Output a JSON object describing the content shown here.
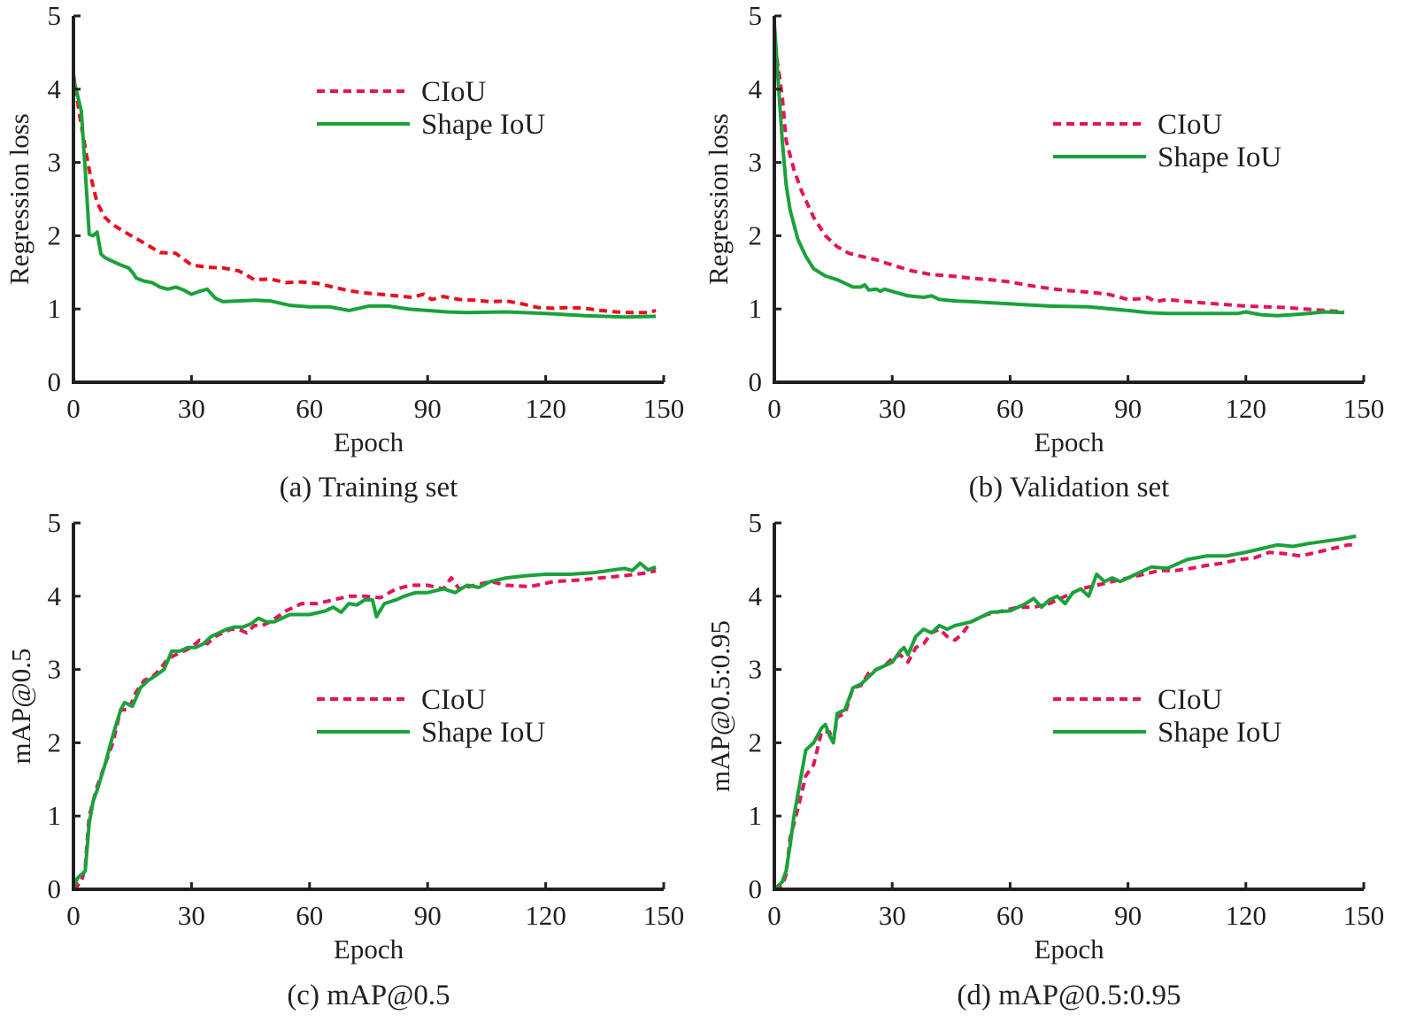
{
  "colors": {
    "ciou_loss": "#e8101e",
    "ciou": "#e4145a",
    "shape_iou": "#1aa23a",
    "axis": "#231f20"
  },
  "chart_data": [
    {
      "id": "a",
      "type": "line",
      "caption": "(a) Training set",
      "title": "",
      "xlabel": "Epoch",
      "ylabel": "Regression loss",
      "xlim": [
        0,
        150
      ],
      "ylim": [
        0,
        5
      ],
      "xticks": [
        0,
        30,
        60,
        90,
        120,
        150
      ],
      "yticks": [
        0,
        1,
        2,
        3,
        4,
        5
      ],
      "grid": false,
      "legend": {
        "position": "top-right",
        "entries": [
          "CIoU",
          "Shape IoU"
        ]
      },
      "series": [
        {
          "name": "CIoU",
          "style": "dashed",
          "color_key": "ciou_loss",
          "x": [
            0,
            2,
            4,
            6,
            8,
            10,
            14,
            18,
            22,
            26,
            30,
            34,
            38,
            42,
            46,
            50,
            54,
            58,
            62,
            66,
            70,
            74,
            78,
            82,
            86,
            89,
            91,
            94,
            98,
            102,
            106,
            110,
            114,
            118,
            122,
            126,
            130,
            134,
            138,
            142,
            146,
            148
          ],
          "y": [
            4.2,
            3.5,
            2.9,
            2.45,
            2.25,
            2.15,
            2.02,
            1.9,
            1.77,
            1.76,
            1.6,
            1.57,
            1.56,
            1.52,
            1.4,
            1.41,
            1.36,
            1.37,
            1.35,
            1.3,
            1.25,
            1.22,
            1.2,
            1.18,
            1.16,
            1.2,
            1.13,
            1.17,
            1.13,
            1.12,
            1.1,
            1.11,
            1.07,
            1.02,
            1.01,
            1.02,
            1.01,
            0.98,
            0.96,
            0.95,
            0.95,
            0.98
          ]
        },
        {
          "name": "Shape IoU",
          "style": "solid",
          "color_key": "shape_iou",
          "x": [
            0,
            2,
            3,
            4,
            5,
            6,
            7,
            8,
            10,
            12,
            14,
            15,
            16,
            18,
            20,
            22,
            24,
            26,
            28,
            30,
            32,
            34,
            36,
            38,
            42,
            46,
            50,
            55,
            60,
            65,
            70,
            75,
            80,
            85,
            90,
            95,
            100,
            110,
            120,
            130,
            140,
            148
          ],
          "y": [
            4.15,
            3.7,
            2.9,
            2.02,
            2.0,
            2.05,
            1.75,
            1.7,
            1.65,
            1.6,
            1.56,
            1.5,
            1.42,
            1.38,
            1.36,
            1.3,
            1.27,
            1.3,
            1.26,
            1.2,
            1.24,
            1.27,
            1.15,
            1.1,
            1.11,
            1.12,
            1.11,
            1.05,
            1.03,
            1.03,
            0.98,
            1.04,
            1.04,
            1.0,
            0.98,
            0.96,
            0.95,
            0.96,
            0.94,
            0.91,
            0.89,
            0.9
          ]
        }
      ]
    },
    {
      "id": "b",
      "type": "line",
      "caption": "(b) Validation set",
      "title": "",
      "xlabel": "Epoch",
      "ylabel": "Regression loss",
      "xlim": [
        0,
        150
      ],
      "ylim": [
        0,
        5
      ],
      "xticks": [
        0,
        30,
        60,
        90,
        120,
        150
      ],
      "yticks": [
        0,
        1,
        2,
        3,
        4,
        5
      ],
      "grid": false,
      "legend": {
        "position": "top-right",
        "entries": [
          "CIoU",
          "Shape IoU"
        ]
      },
      "series": [
        {
          "name": "CIoU",
          "style": "dashed",
          "color_key": "ciou",
          "x": [
            0,
            1,
            2,
            3,
            5,
            7,
            10,
            13,
            16,
            19,
            22,
            26,
            30,
            35,
            40,
            45,
            50,
            55,
            60,
            65,
            70,
            75,
            80,
            85,
            90,
            93,
            95,
            97,
            100,
            105,
            110,
            115,
            120,
            125,
            130,
            135,
            140,
            145
          ],
          "y": [
            4.6,
            4.3,
            3.9,
            3.3,
            2.9,
            2.6,
            2.25,
            2.0,
            1.85,
            1.76,
            1.72,
            1.67,
            1.6,
            1.52,
            1.47,
            1.45,
            1.42,
            1.4,
            1.37,
            1.32,
            1.28,
            1.25,
            1.23,
            1.2,
            1.13,
            1.14,
            1.16,
            1.1,
            1.13,
            1.1,
            1.08,
            1.06,
            1.04,
            1.03,
            1.02,
            1.0,
            0.98,
            0.96
          ]
        },
        {
          "name": "Shape IoU",
          "style": "solid",
          "color_key": "shape_iou",
          "x": [
            0,
            1,
            2,
            3,
            4,
            6,
            8,
            10,
            13,
            16,
            18,
            20,
            22,
            23,
            24,
            26,
            27,
            28,
            30,
            34,
            38,
            40,
            42,
            46,
            50,
            60,
            70,
            80,
            90,
            95,
            100,
            110,
            118,
            120,
            124,
            128,
            134,
            140,
            145
          ],
          "y": [
            4.9,
            4.1,
            3.3,
            2.7,
            2.35,
            1.95,
            1.72,
            1.55,
            1.45,
            1.4,
            1.35,
            1.3,
            1.3,
            1.33,
            1.26,
            1.27,
            1.24,
            1.27,
            1.24,
            1.18,
            1.16,
            1.18,
            1.13,
            1.11,
            1.1,
            1.07,
            1.04,
            1.03,
            0.98,
            0.95,
            0.94,
            0.94,
            0.94,
            0.96,
            0.92,
            0.91,
            0.93,
            0.96,
            0.95
          ]
        }
      ]
    },
    {
      "id": "c",
      "type": "line",
      "caption": "(c) mAP@0.5",
      "title": "",
      "xlabel": "Epoch",
      "ylabel": "mAP@0.5",
      "xlim": [
        0,
        150
      ],
      "ylim": [
        0,
        5
      ],
      "xticks": [
        0,
        30,
        60,
        90,
        120,
        150
      ],
      "yticks": [
        0,
        1,
        2,
        3,
        4,
        5
      ],
      "grid": false,
      "legend": {
        "position": "center-right",
        "entries": [
          "CIoU",
          "Shape IoU"
        ]
      },
      "series": [
        {
          "name": "CIoU",
          "style": "dashed",
          "color_key": "ciou",
          "x": [
            0,
            2,
            3,
            4,
            5,
            6,
            8,
            10,
            12,
            14,
            16,
            18,
            20,
            22,
            24,
            26,
            28,
            30,
            32,
            34,
            36,
            38,
            40,
            42,
            44,
            46,
            48,
            50,
            54,
            58,
            62,
            66,
            70,
            74,
            78,
            82,
            86,
            90,
            94,
            96,
            98,
            102,
            106,
            110,
            116,
            122,
            128,
            134,
            140,
            146,
            148
          ],
          "y": [
            0.0,
            0.1,
            0.3,
            1.0,
            1.2,
            1.4,
            1.7,
            2.0,
            2.45,
            2.45,
            2.7,
            2.85,
            2.9,
            3.0,
            3.15,
            3.2,
            3.25,
            3.3,
            3.4,
            3.35,
            3.45,
            3.5,
            3.55,
            3.55,
            3.5,
            3.6,
            3.6,
            3.65,
            3.8,
            3.9,
            3.9,
            3.95,
            4.0,
            4.0,
            3.98,
            4.1,
            4.15,
            4.15,
            4.1,
            4.25,
            4.1,
            4.15,
            4.2,
            4.15,
            4.13,
            4.2,
            4.22,
            4.25,
            4.28,
            4.32,
            4.35
          ]
        },
        {
          "name": "Shape IoU",
          "style": "solid",
          "color_key": "shape_iou",
          "x": [
            0,
            1,
            3,
            4,
            5,
            6,
            8,
            10,
            12,
            13,
            15,
            17,
            19,
            21,
            23,
            25,
            27,
            29,
            31,
            33,
            35,
            37,
            39,
            41,
            43,
            45,
            47,
            49,
            51,
            55,
            60,
            64,
            66,
            68,
            70,
            72,
            74,
            76,
            77,
            79,
            82,
            84,
            87,
            90,
            94,
            97,
            100,
            103,
            106,
            110,
            115,
            120,
            126,
            132,
            136,
            140,
            142,
            144,
            146,
            148
          ],
          "y": [
            0.0,
            0.15,
            0.25,
            0.9,
            1.2,
            1.35,
            1.7,
            2.1,
            2.45,
            2.55,
            2.5,
            2.75,
            2.85,
            2.92,
            3.0,
            3.25,
            3.25,
            3.3,
            3.3,
            3.35,
            3.45,
            3.5,
            3.55,
            3.58,
            3.58,
            3.62,
            3.7,
            3.65,
            3.65,
            3.75,
            3.75,
            3.8,
            3.85,
            3.78,
            3.9,
            3.88,
            3.95,
            3.95,
            3.72,
            3.9,
            3.95,
            4.0,
            4.05,
            4.05,
            4.1,
            4.05,
            4.15,
            4.12,
            4.2,
            4.25,
            4.28,
            4.3,
            4.3,
            4.32,
            4.35,
            4.38,
            4.35,
            4.45,
            4.36,
            4.4
          ]
        }
      ]
    },
    {
      "id": "d",
      "type": "line",
      "caption": "(d) mAP@0.5:0.95",
      "title": "",
      "xlabel": "Epoch",
      "ylabel": "mAP@0.5:0.95",
      "xlim": [
        0,
        150
      ],
      "ylim": [
        0,
        5
      ],
      "xticks": [
        0,
        30,
        60,
        90,
        120,
        150
      ],
      "yticks": [
        0,
        1,
        2,
        3,
        4,
        5
      ],
      "grid": false,
      "legend": {
        "position": "center-right",
        "entries": [
          "CIoU",
          "Shape IoU"
        ]
      },
      "series": [
        {
          "name": "CIoU",
          "style": "dashed",
          "color_key": "ciou",
          "x": [
            0,
            2,
            3,
            4,
            5,
            6,
            8,
            10,
            12,
            14,
            15,
            16,
            18,
            20,
            22,
            24,
            26,
            28,
            30,
            32,
            34,
            36,
            38,
            40,
            42,
            44,
            46,
            48,
            50,
            54,
            58,
            62,
            66,
            70,
            74,
            78,
            82,
            86,
            90,
            94,
            98,
            102,
            106,
            110,
            114,
            118,
            122,
            126,
            130,
            134,
            138,
            142,
            146,
            148
          ],
          "y": [
            0.0,
            0.05,
            0.2,
            0.7,
            0.9,
            1.1,
            1.55,
            1.7,
            2.15,
            2.15,
            2.0,
            2.35,
            2.4,
            2.75,
            2.78,
            2.95,
            3.0,
            3.05,
            3.15,
            3.2,
            3.1,
            3.3,
            3.35,
            3.5,
            3.55,
            3.45,
            3.4,
            3.5,
            3.65,
            3.75,
            3.8,
            3.85,
            3.85,
            3.9,
            4.0,
            4.1,
            4.15,
            4.2,
            4.25,
            4.3,
            4.35,
            4.35,
            4.38,
            4.42,
            4.45,
            4.5,
            4.52,
            4.6,
            4.58,
            4.55,
            4.6,
            4.65,
            4.7,
            4.7
          ]
        },
        {
          "name": "Shape IoU",
          "style": "solid",
          "color_key": "shape_iou",
          "x": [
            0,
            2,
            3,
            4,
            5,
            6,
            8,
            10,
            12,
            13,
            14,
            15,
            16,
            18,
            20,
            22,
            24,
            26,
            28,
            30,
            32,
            33,
            34,
            36,
            38,
            40,
            42,
            44,
            46,
            50,
            55,
            60,
            64,
            66,
            68,
            70,
            72,
            74,
            76,
            78,
            80,
            82,
            84,
            86,
            88,
            90,
            92,
            94,
            96,
            100,
            105,
            110,
            115,
            120,
            124,
            128,
            132,
            136,
            140,
            144,
            148
          ],
          "y": [
            0.0,
            0.1,
            0.25,
            0.6,
            1.0,
            1.3,
            1.9,
            2.0,
            2.2,
            2.25,
            2.1,
            2.0,
            2.4,
            2.45,
            2.75,
            2.8,
            2.9,
            3.0,
            3.05,
            3.1,
            3.25,
            3.3,
            3.2,
            3.45,
            3.55,
            3.5,
            3.6,
            3.55,
            3.6,
            3.65,
            3.78,
            3.8,
            3.9,
            3.97,
            3.85,
            3.95,
            4.0,
            3.9,
            4.05,
            4.1,
            4.0,
            4.3,
            4.2,
            4.25,
            4.2,
            4.25,
            4.3,
            4.35,
            4.4,
            4.38,
            4.5,
            4.55,
            4.55,
            4.6,
            4.65,
            4.7,
            4.68,
            4.72,
            4.75,
            4.78,
            4.82
          ]
        }
      ]
    }
  ]
}
